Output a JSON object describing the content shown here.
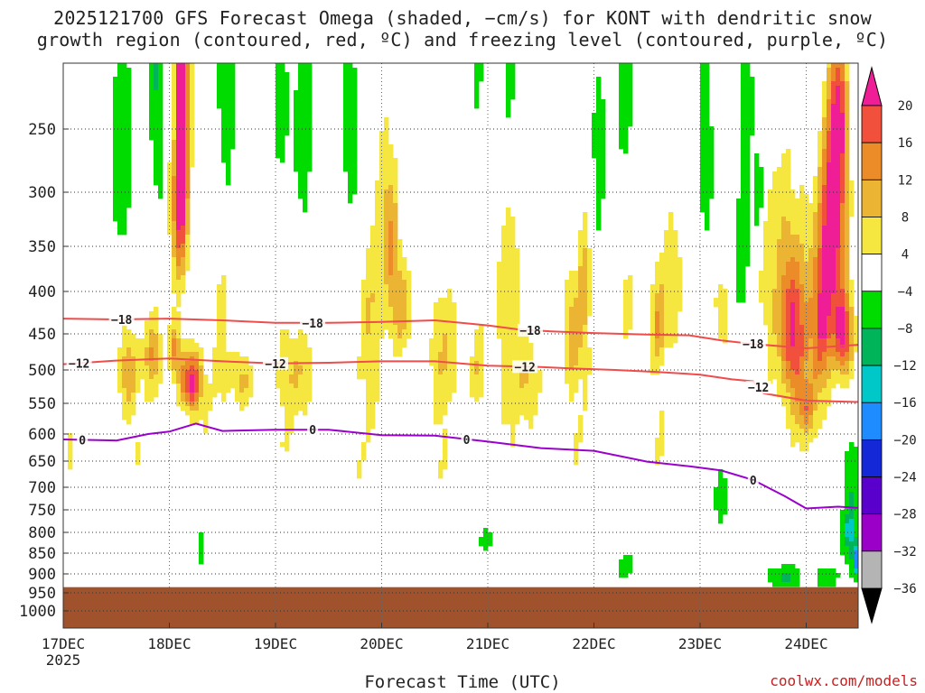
{
  "title": {
    "line1": "2025121700 GFS Forecast Omega (shaded, −cm/s) for KONT with dendritic snow",
    "line2": "growth region (contoured, red, ºC) and freezing level (contoured, purple, ºC)"
  },
  "credit": "coolwx.com/models",
  "chart_data": {
    "type": "heatmap",
    "title": "2025121700 GFS Forecast Omega (shaded, −cm/s) for KONT with dendritic snow growth region (contoured, red, ºC) and freezing level (contoured, purple, ºC)",
    "xlabel": "Forecast Time (UTC)",
    "ylabel": "",
    "x_axis": {
      "ticks": [
        "17DEC",
        "18DEC",
        "19DEC",
        "20DEC",
        "21DEC",
        "22DEC",
        "23DEC",
        "24DEC"
      ],
      "sublabel": "2025",
      "range_days": [
        0,
        7.5
      ]
    },
    "y_axis": {
      "units": "hPa",
      "ticks": [
        250,
        300,
        350,
        400,
        450,
        500,
        550,
        600,
        650,
        700,
        750,
        800,
        850,
        900,
        950,
        1000
      ],
      "range_hpa": [
        200,
        1050
      ],
      "grid": "dotted"
    },
    "colorbar": {
      "labels": [
        "20",
        "16",
        "12",
        "8",
        "4",
        "−4",
        "−8",
        "−12",
        "−16",
        "−20",
        "−24",
        "−28",
        "−32",
        "−36"
      ],
      "levels": [
        -36,
        -32,
        -28,
        -24,
        -20,
        -16,
        -12,
        -8,
        -4,
        4,
        8,
        12,
        16,
        20
      ],
      "colors": [
        "#b4b4b4",
        "#9b00c8",
        "#5a00cc",
        "#1428d7",
        "#1e8cff",
        "#00c8c8",
        "#00b45a",
        "#00dc00",
        "#ffffff",
        "#f5e640",
        "#ebb432",
        "#eb8c28",
        "#f0503c",
        "#f01e96"
      ]
    },
    "surface_color": "#a0522d",
    "series": [
      {
        "name": "−18",
        "color": "#f04c4c",
        "points": [
          [
            0,
            432
          ],
          [
            0.5,
            433
          ],
          [
            1.0,
            432
          ],
          [
            1.5,
            434
          ],
          [
            2.0,
            437
          ],
          [
            2.5,
            437
          ],
          [
            3.0,
            436
          ],
          [
            3.5,
            434
          ],
          [
            4.0,
            440
          ],
          [
            4.3,
            445
          ],
          [
            4.6,
            447
          ],
          [
            5.0,
            449
          ],
          [
            5.5,
            451
          ],
          [
            5.9,
            452
          ],
          [
            6.2,
            459
          ],
          [
            6.5,
            464
          ],
          [
            7.0,
            470
          ],
          [
            7.5,
            465
          ]
        ],
        "labels_at_day": [
          0.55,
          2.35,
          4.4,
          6.5
        ]
      },
      {
        "name": "−12",
        "color": "#f04c4c",
        "points": [
          [
            0,
            492
          ],
          [
            0.5,
            487
          ],
          [
            1.0,
            484
          ],
          [
            1.5,
            488
          ],
          [
            2.0,
            491
          ],
          [
            2.5,
            490
          ],
          [
            3.0,
            488
          ],
          [
            3.5,
            488
          ],
          [
            4.0,
            494
          ],
          [
            4.5,
            496
          ],
          [
            4.8,
            498
          ],
          [
            5.2,
            500
          ],
          [
            5.6,
            503
          ],
          [
            6.0,
            507
          ],
          [
            6.3,
            514
          ],
          [
            6.5,
            517
          ],
          [
            6.6,
            535
          ],
          [
            7.0,
            546
          ],
          [
            7.5,
            548
          ]
        ],
        "labels_at_day": [
          0.15,
          2.0,
          4.35,
          6.55
        ]
      },
      {
        "name": "0",
        "color": "#9b00cc",
        "points": [
          [
            0,
            610
          ],
          [
            0.5,
            612
          ],
          [
            0.8,
            600
          ],
          [
            1.0,
            596
          ],
          [
            1.25,
            583
          ],
          [
            1.5,
            595
          ],
          [
            2.0,
            593
          ],
          [
            2.5,
            593
          ],
          [
            3.0,
            602
          ],
          [
            3.5,
            603
          ],
          [
            4.0,
            614
          ],
          [
            4.5,
            626
          ],
          [
            5.0,
            631
          ],
          [
            5.5,
            651
          ],
          [
            5.9,
            660
          ],
          [
            6.2,
            668
          ],
          [
            6.5,
            686
          ],
          [
            6.8,
            720
          ],
          [
            7.0,
            747
          ],
          [
            7.3,
            743
          ],
          [
            7.5,
            746
          ]
        ],
        "labels_at_day": [
          0.18,
          2.35,
          3.8,
          6.5
        ]
      }
    ]
  }
}
